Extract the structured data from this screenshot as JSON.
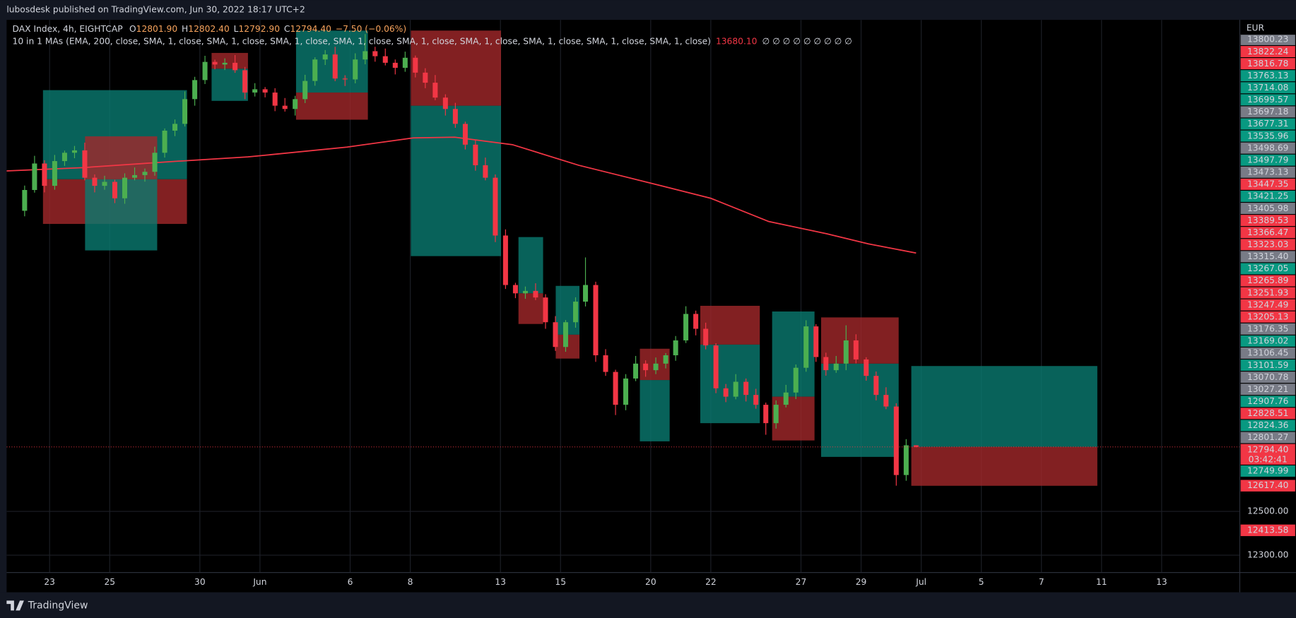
{
  "publisher": "lubosdesk published on TradingView.com, Jun 30, 2022 18:17 UTC+2",
  "brand": "TradingView",
  "chart_data": {
    "type": "candlestick",
    "legend": {
      "symbol": "DAX Index, 4h, EIGHTCAP",
      "ohlc": [
        {
          "key": "O",
          "value": "12801.90"
        },
        {
          "key": "H",
          "value": "12802.40"
        },
        {
          "key": "L",
          "value": "12792.90"
        },
        {
          "key": "C",
          "value": "12794.40"
        }
      ],
      "change": "−7.50 (−0.06%)",
      "indicator": "10 in 1 MAs (EMA, 200, close, SMA, 1, close, SMA, 1, close, SMA, 1, close, SMA, 1, close, SMA, 1, close, SMA, 1, close, SMA, 1, close, SMA, 1, close, SMA, 1, close)",
      "indicator_value": "13680.10",
      "nulls": "∅ ∅ ∅ ∅ ∅ ∅ ∅ ∅ ∅"
    },
    "currency": "EUR",
    "up_color": "#4caf50",
    "down_color": "#f23645",
    "x": [
      -0.83,
      -0.5,
      -0.17,
      0.17,
      0.5,
      0.83,
      1.17,
      1.5,
      1.83,
      2.17,
      2.5,
      2.83,
      3.17,
      3.5,
      3.83,
      4.17,
      4.5,
      4.83,
      5.17,
      5.5,
      5.83,
      6.17,
      6.5,
      6.83,
      7.17,
      7.5,
      7.83,
      8.17,
      8.5,
      8.83,
      9.17,
      9.5,
      9.83,
      10.17,
      10.5,
      10.83,
      11.17,
      11.5,
      11.83,
      12.17,
      12.5,
      12.83,
      13.17,
      13.5,
      13.83,
      14.17,
      14.5,
      14.83,
      15.17,
      15.5,
      15.83,
      16.17,
      16.5,
      16.83,
      17.17,
      17.5,
      17.83,
      18.17,
      18.5,
      18.83,
      19.17,
      19.5,
      19.83,
      20.17,
      20.5,
      20.83,
      21.17,
      21.5,
      21.83,
      22.17,
      22.5,
      22.83,
      23.17,
      23.5,
      23.83,
      24.17,
      24.5,
      24.83,
      25.17,
      25.5,
      25.83,
      26.17,
      26.5,
      26.83,
      27.17,
      27.5,
      27.83,
      28.17,
      28.5,
      28.83
    ],
    "open": [
      13873,
      13968,
      14089,
      13987,
      14100,
      14138,
      14149,
      14024,
      13987,
      14005,
      13930,
      14024,
      14036,
      14051,
      14138,
      14239,
      14270,
      14383,
      14470,
      14553,
      14541,
      14549,
      14515,
      14413,
      14428,
      14413,
      14353,
      14338,
      14383,
      14466,
      14564,
      14587,
      14477,
      14473,
      14564,
      14602,
      14579,
      14549,
      14526,
      14572,
      14504,
      14458,
      14390,
      14338,
      14270,
      14175,
      14081,
      14024,
      13760,
      13534,
      13496,
      13507,
      13477,
      13364,
      13251,
      13364,
      13458,
      13534,
      13213,
      13137,
      12987,
      13107,
      13175,
      13145,
      13175,
      13213,
      13281,
      13402,
      13334,
      13258,
      13062,
      13024,
      13092,
      13032,
      12987,
      12903,
      12987,
      13043,
      13156,
      13345,
      13205,
      13145,
      13175,
      13281,
      13194,
      13119,
      13032,
      12979,
      12666,
      12801.9
    ],
    "high": [
      13988,
      14124,
      14104,
      14128,
      14148,
      14169,
      14184,
      14039,
      14033,
      14015,
      14044,
      14071,
      14066,
      14166,
      14249,
      14290,
      14418,
      14485,
      14581,
      14563,
      14569,
      14584,
      14530,
      14456,
      14438,
      14433,
      14388,
      14398,
      14494,
      14574,
      14607,
      14622,
      14492,
      14592,
      14680,
      14622,
      14614,
      14564,
      14600,
      14582,
      14524,
      14493,
      14405,
      14366,
      14280,
      14195,
      14116,
      14039,
      13788,
      13544,
      13527,
      13542,
      13492,
      13392,
      13374,
      13478,
      13660,
      13549,
      13241,
      13147,
      13127,
      13210,
      13190,
      13203,
      13223,
      13301,
      13437,
      13417,
      13362,
      13268,
      13082,
      13127,
      13107,
      13060,
      12997,
      13007,
      13078,
      13171,
      13373,
      13355,
      13225,
      13210,
      13350,
      13309,
      13204,
      13139,
      13067,
      12994,
      12830,
      12802.4
    ],
    "low": [
      13848,
      13956,
      13957,
      13969,
      14078,
      14113,
      14012,
      13957,
      13969,
      13908,
      13905,
      14012,
      14006,
      14033,
      14116,
      14214,
      14258,
      14353,
      14452,
      14519,
      14516,
      14503,
      14383,
      14395,
      14391,
      14328,
      14326,
      14308,
      14365,
      14444,
      14539,
      14465,
      14443,
      14455,
      14542,
      14554,
      14537,
      14496,
      14508,
      14482,
      14433,
      14378,
      14308,
      14252,
      14153,
      14056,
      14012,
      13730,
      13516,
      13474,
      13471,
      13465,
      13334,
      13233,
      13229,
      13339,
      13436,
      13183,
      13119,
      12940,
      12962,
      13095,
      13115,
      13127,
      13153,
      13188,
      13269,
      13304,
      13240,
      13040,
      12999,
      13012,
      13002,
      12969,
      12850,
      12878,
      12975,
      13013,
      13138,
      13183,
      13120,
      13133,
      13145,
      13176,
      13097,
      13007,
      12967,
      12617.4,
      12640,
      12792.9
    ],
    "close": [
      13968,
      14089,
      13987,
      14100,
      14138,
      14149,
      14024,
      13987,
      14005,
      13930,
      14024,
      14036,
      14051,
      14138,
      14239,
      14270,
      14383,
      14470,
      14553,
      14541,
      14549,
      14515,
      14413,
      14428,
      14413,
      14353,
      14338,
      14383,
      14466,
      14564,
      14587,
      14477,
      14473,
      14564,
      14602,
      14579,
      14549,
      14526,
      14572,
      14504,
      14458,
      14390,
      14338,
      14270,
      14175,
      14081,
      14024,
      13760,
      13534,
      13496,
      13507,
      13477,
      13364,
      13251,
      13364,
      13458,
      13534,
      13213,
      13137,
      12987,
      13107,
      13175,
      13145,
      13175,
      13213,
      13281,
      13402,
      13334,
      13258,
      13062,
      13024,
      13092,
      13032,
      12987,
      12903,
      12987,
      13043,
      13156,
      13345,
      13205,
      13145,
      13175,
      13281,
      13194,
      13119,
      13032,
      12979,
      12666,
      12801.9,
      12794.4
    ],
    "ema": {
      "color": "#f23645",
      "x": [
        -1.43,
        1.1,
        3.85,
        6.6,
        9.9,
        12.1,
        13.48,
        15.4,
        17.6,
        20.36,
        22.0,
        23.93,
        25.86,
        27.24,
        28.83
      ],
      "values": [
        14055,
        14070,
        14096,
        14119,
        14164,
        14206,
        14209,
        14175,
        14081,
        13987,
        13930,
        13824,
        13768,
        13722,
        13680.1
      ]
    },
    "target_color": "#0a7a70",
    "stop_color": "#a3282b",
    "positions": [
      {
        "x": [
          -0.22,
          4.57
        ],
        "target": 14424,
        "entry": 14017,
        "stop": 13813
      },
      {
        "x": [
          1.18,
          3.58
        ],
        "target": 13692,
        "entry": 14017,
        "stop": 14213
      },
      {
        "x": [
          5.39,
          6.6
        ],
        "target": 14375,
        "entry": 14522,
        "stop": 14594
      },
      {
        "x": [
          8.2,
          10.59
        ],
        "target": 14696,
        "entry": 14413,
        "stop": 14289
      },
      {
        "x": [
          12.02,
          15.02
        ],
        "target": 13666,
        "entry": 14353,
        "stop": 14696
      },
      {
        "x": [
          15.6,
          16.42
        ],
        "target": 13753,
        "entry": 13496,
        "stop": 13356
      },
      {
        "x": [
          16.84,
          17.63
        ],
        "target": 13530,
        "entry": 13307,
        "stop": 13198
      },
      {
        "x": [
          19.64,
          20.63
        ],
        "target": 12820,
        "entry": 13100,
        "stop": 13243
      },
      {
        "x": [
          21.65,
          23.63
        ],
        "target": 12903,
        "entry": 13262,
        "stop": 13439
      },
      {
        "x": [
          24.04,
          25.45
        ],
        "target": 13413,
        "entry": 13024,
        "stop": 12824
      },
      {
        "x": [
          25.67,
          28.25
        ],
        "target": 12749,
        "entry": 13175,
        "stop": 13386
      },
      {
        "x": [
          28.67,
          34.86
        ],
        "target": 13164,
        "entry": 12794.4,
        "stop": 12617
      }
    ],
    "xlim": [
      -1.43,
      39.6
    ],
    "ylim": [
      12220.8,
      14745
    ],
    "xticks": [
      {
        "value": 0,
        "label": "23"
      },
      {
        "value": 2,
        "label": "25"
      },
      {
        "value": 5,
        "label": "30"
      },
      {
        "value": 7,
        "label": "Jun"
      },
      {
        "value": 10,
        "label": "6"
      },
      {
        "value": 12,
        "label": "8"
      },
      {
        "value": 15,
        "label": "13"
      },
      {
        "value": 17,
        "label": "15"
      },
      {
        "value": 20,
        "label": "20"
      },
      {
        "value": 22,
        "label": "22"
      },
      {
        "value": 25,
        "label": "27"
      },
      {
        "value": 27,
        "label": "29"
      },
      {
        "value": 29,
        "label": "Jul"
      },
      {
        "value": 31,
        "label": "5"
      },
      {
        "value": 33,
        "label": "7"
      },
      {
        "value": 35,
        "label": "11"
      },
      {
        "value": 37,
        "label": "13"
      }
    ],
    "yticks": [
      {
        "value": 12300,
        "label": "12300.00"
      },
      {
        "value": 12500,
        "label": "12500.00"
      }
    ],
    "grid": true,
    "price_labels": [
      {
        "label": "13800.23",
        "color": "#787b86"
      },
      {
        "label": "13822.24",
        "color": "#f23645"
      },
      {
        "label": "13816.78",
        "color": "#f23645"
      },
      {
        "label": "13763.13",
        "color": "#089981"
      },
      {
        "label": "13714.08",
        "color": "#089981"
      },
      {
        "label": "13699.57",
        "color": "#089981"
      },
      {
        "label": "13697.18",
        "color": "#787b86"
      },
      {
        "label": "13677.31",
        "color": "#089981"
      },
      {
        "label": "13535.96",
        "color": "#089981"
      },
      {
        "label": "13498.69",
        "color": "#787b86"
      },
      {
        "label": "13497.79",
        "color": "#089981"
      },
      {
        "label": "13473.13",
        "color": "#787b86"
      },
      {
        "label": "13447.35",
        "color": "#f23645"
      },
      {
        "label": "13421.25",
        "color": "#089981"
      },
      {
        "label": "13405.98",
        "color": "#787b86"
      },
      {
        "label": "13389.53",
        "color": "#f23645"
      },
      {
        "label": "13366.47",
        "color": "#f23645"
      },
      {
        "label": "13323.03",
        "color": "#f23645"
      },
      {
        "label": "13315.40",
        "color": "#787b86"
      },
      {
        "label": "13267.05",
        "color": "#089981"
      },
      {
        "label": "13265.89",
        "color": "#f23645"
      },
      {
        "label": "13251.93",
        "color": "#f23645"
      },
      {
        "label": "13247.49",
        "color": "#f23645"
      },
      {
        "label": "13205.13",
        "color": "#f23645"
      },
      {
        "label": "13176.35",
        "color": "#787b86"
      },
      {
        "label": "13169.02",
        "color": "#089981"
      },
      {
        "label": "13106.45",
        "color": "#787b86"
      },
      {
        "label": "13101.59",
        "color": "#089981"
      },
      {
        "label": "13070.78",
        "color": "#787b86"
      },
      {
        "label": "13027.21",
        "color": "#787b86"
      },
      {
        "label": "12907.76",
        "color": "#089981"
      },
      {
        "label": "12828.51",
        "color": "#f23645"
      },
      {
        "label": "12824.36",
        "color": "#089981"
      },
      {
        "label": "12801.27",
        "color": "#787b86"
      },
      {
        "label": "12794.40",
        "color": "#f23645",
        "countdown": "03:42:41"
      },
      {
        "label": "12749.99",
        "color": "#089981"
      }
    ],
    "price_tags": [
      {
        "value": 12617.4,
        "label": "12617.40",
        "color": "#f23645"
      },
      {
        "value": 12413.58,
        "label": "12413.58",
        "color": "#f23645"
      }
    ]
  }
}
